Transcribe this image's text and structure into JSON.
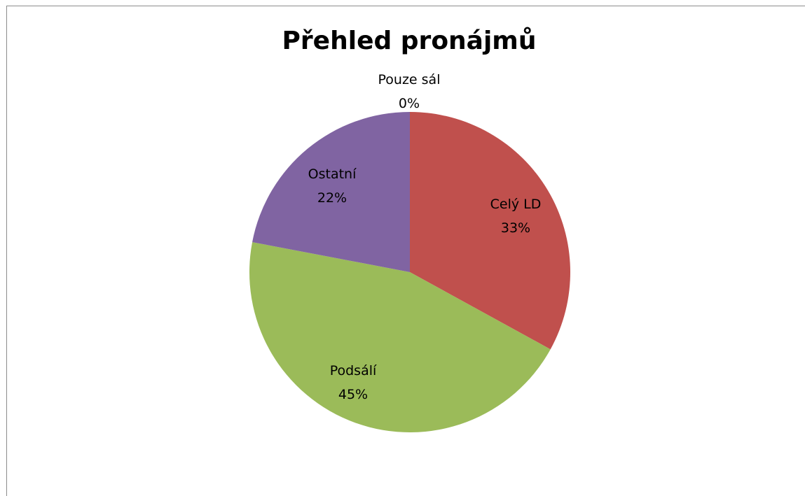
{
  "chart_data": {
    "type": "pie",
    "title": "Přehled pronájmů",
    "legend": "none",
    "slices": [
      {
        "name": "Celý LD",
        "value": 33,
        "label": "33%",
        "color": "#C0504D"
      },
      {
        "name": "Podsálí",
        "value": 45,
        "label": "45%",
        "color": "#9BBB59"
      },
      {
        "name": "Ostatní",
        "value": 22,
        "label": "22%",
        "color": "#8064A2"
      },
      {
        "name": "Pouze sál",
        "value": 0,
        "label": "0%",
        "color": "#4F81BD"
      }
    ]
  }
}
